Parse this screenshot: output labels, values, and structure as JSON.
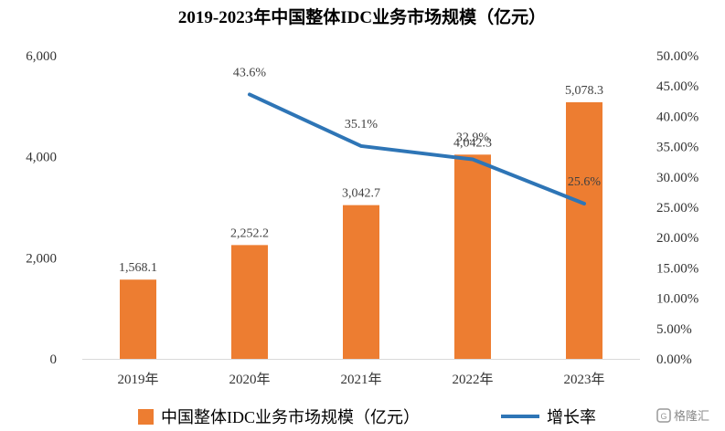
{
  "chart_data": {
    "type": "bar",
    "title": "2019-2023年中国整体IDC业务市场规模（亿元）",
    "categories": [
      "2019年",
      "2020年",
      "2021年",
      "2022年",
      "2023年"
    ],
    "series": [
      {
        "name": "中国整体IDC业务市场规模（亿元）",
        "type": "bar",
        "axis": "left",
        "values": [
          1568.1,
          2252.2,
          3042.7,
          4042.3,
          5078.3
        ],
        "labels": [
          "1,568.1",
          "2,252.2",
          "3,042.7",
          "4,042.3",
          "5,078.3"
        ],
        "color": "#ED7D31"
      },
      {
        "name": "增长率",
        "type": "line",
        "axis": "right",
        "values": [
          null,
          43.6,
          35.1,
          32.9,
          25.6
        ],
        "labels": [
          "",
          "43.6%",
          "35.1%",
          "32.9%",
          "25.6%"
        ],
        "color": "#2E75B6"
      }
    ],
    "y_left": {
      "ylim": [
        0,
        6000
      ],
      "ticks": [
        0,
        2000,
        4000,
        6000
      ],
      "tick_labels": [
        "0",
        "2,000",
        "4,000",
        "6,000"
      ]
    },
    "y_right": {
      "ylim": [
        0,
        50
      ],
      "ticks": [
        0,
        5,
        10,
        15,
        20,
        25,
        30,
        35,
        40,
        45,
        50
      ],
      "tick_labels": [
        "0.00%",
        "5.00%",
        "10.00%",
        "15.00%",
        "20.00%",
        "25.00%",
        "30.00%",
        "35.00%",
        "40.00%",
        "45.00%",
        "50.00%"
      ]
    },
    "legend_position": "bottom",
    "grid": false
  },
  "watermark": {
    "text": "格隆汇"
  }
}
